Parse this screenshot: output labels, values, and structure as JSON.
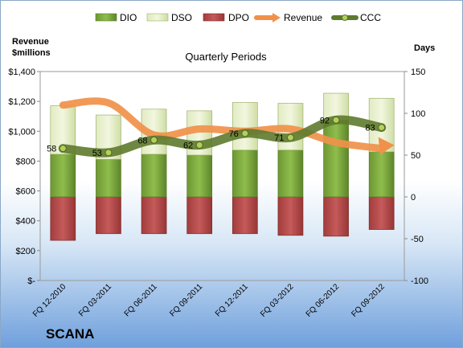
{
  "chart_data": {
    "type": "bar",
    "title": "Quarterly Periods",
    "company": "SCANA",
    "left_axis_title": [
      "Revenue",
      "$millions"
    ],
    "right_axis_title": "Days",
    "categories": [
      "FQ 12-2010",
      "FQ 03-2011",
      "FQ 06-2011",
      "FQ 09-2011",
      "FQ 12-2011",
      "FQ 03-2012",
      "FQ 06-2012",
      "FQ 09-2012"
    ],
    "left_axis": {
      "ylim": [
        0,
        1400
      ],
      "ticks": [
        0,
        200,
        400,
        600,
        800,
        1000,
        1200,
        1400
      ],
      "tick_labels": [
        "$-",
        "$200",
        "$400",
        "$600",
        "$800",
        "$1,000",
        "$1,200",
        "$1,400"
      ]
    },
    "right_axis": {
      "ylim": [
        -100,
        150
      ],
      "ticks": [
        -100,
        -50,
        0,
        50,
        100,
        150
      ],
      "tick_labels": [
        "-100",
        "-50",
        "0",
        "50",
        "100",
        "150"
      ]
    },
    "legend": [
      "DIO",
      "DSO",
      "DPO",
      "Revenue",
      "CCC"
    ],
    "series": [
      {
        "name": "DIO",
        "axis": "right",
        "kind": "stacked_bar",
        "values": [
          51,
          45,
          51,
          50,
          56,
          56,
          92,
          54
        ],
        "color": "#7aa73c"
      },
      {
        "name": "DSO",
        "axis": "right",
        "kind": "stacked_bar",
        "values": [
          58,
          53,
          54,
          53,
          57,
          56,
          32,
          64
        ],
        "color": "#d7e4b0"
      },
      {
        "name": "DPO",
        "axis": "right",
        "kind": "negative_bar",
        "values": [
          -52,
          -44,
          -44,
          -44,
          -44,
          -46,
          -47,
          -39
        ],
        "color": "#b54a4a"
      },
      {
        "name": "Revenue",
        "axis": "left",
        "kind": "line",
        "values": [
          1175,
          1190,
          975,
          1015,
          1000,
          1015,
          925,
          885
        ],
        "color": "#f0914a"
      },
      {
        "name": "CCC",
        "axis": "right",
        "kind": "line",
        "values": [
          58,
          53,
          68,
          62,
          76,
          71,
          92,
          83
        ],
        "labels": [
          "58",
          "53",
          "68",
          "62",
          "76",
          "71",
          "92",
          "83"
        ],
        "color": "#5e7a2e"
      }
    ]
  }
}
